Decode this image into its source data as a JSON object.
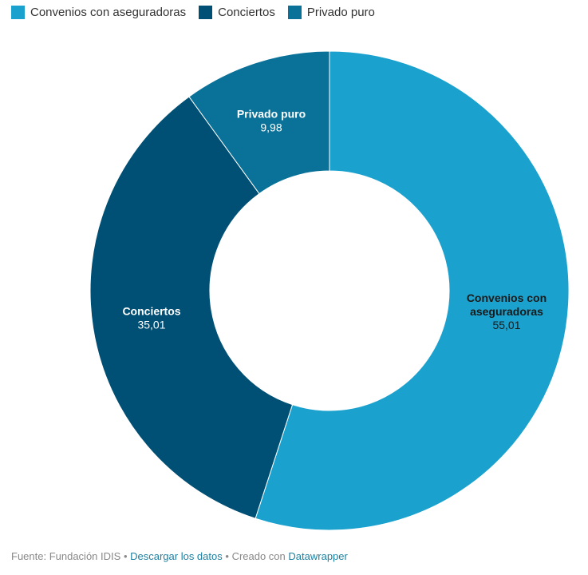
{
  "chart_data": {
    "type": "pie",
    "variant": "donut",
    "legend_position": "top",
    "slices": [
      {
        "label": "Convenios con aseguradoras",
        "value": 55.01,
        "value_label": "55,01",
        "color": "#1aa1ce",
        "text_color": "#1a1a1a"
      },
      {
        "label": "Conciertos",
        "value": 35.01,
        "value_label": "35,01",
        "color": "#004f74",
        "text_color": "#ffffff"
      },
      {
        "label": "Privado puro",
        "value": 9.98,
        "value_label": "9,98",
        "color": "#0a7298",
        "text_color": "#ffffff"
      }
    ],
    "slice_label_lines": [
      [
        "Convenios con",
        "aseguradoras"
      ],
      [
        "Conciertos"
      ],
      [
        "Privado puro"
      ]
    ]
  },
  "footer": {
    "source_text": "Fuente: Fundación IDIS",
    "separator": "•",
    "download_link": "Descargar los datos",
    "created_text": "Creado con",
    "tool_link": "Datawrapper",
    "link_color": "#1d81a2"
  }
}
